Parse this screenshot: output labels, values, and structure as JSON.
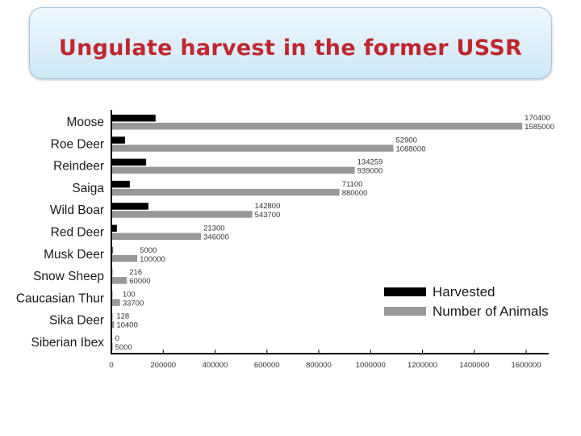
{
  "slide": {
    "title": "Ungulate harvest in the former USSR"
  },
  "chart_data": {
    "type": "bar",
    "orientation": "horizontal",
    "categories": [
      "Moose",
      "Roe Deer",
      "Reindeer",
      "Saiga",
      "Wild Boar",
      "Red Deer",
      "Musk Deer",
      "Snow Sheep",
      "Caucasian Thur",
      "Sika Deer",
      "Siberian Ibex"
    ],
    "series": [
      {
        "name": "Harvested",
        "color": "#000000",
        "values": [
          170400,
          52900,
          134259,
          71100,
          142800,
          21300,
          5000,
          216,
          100,
          128,
          0
        ],
        "labels": [
          "170400",
          "52900",
          "134259",
          "71100",
          "142800",
          "21300",
          "5000",
          "216",
          "100",
          "128",
          "0"
        ]
      },
      {
        "name": "Number of Animals",
        "color": "#999999",
        "values": [
          1585000,
          1088000,
          939000,
          880000,
          543700,
          346000,
          100000,
          60000,
          33700,
          10400,
          5000
        ],
        "labels": [
          "1585000",
          "1088000",
          "939000",
          "880000",
          "543700",
          "346000",
          "100000",
          "60000",
          "33700",
          "10400",
          "5000"
        ]
      }
    ],
    "xlim": [
      0,
      1600000
    ],
    "xticks": [
      0,
      200000,
      400000,
      600000,
      800000,
      1000000,
      1200000,
      1400000,
      1600000
    ],
    "xtick_labels": [
      "0",
      "200000",
      "400000",
      "600000",
      "800000",
      "1000000",
      "1200000",
      "1400000",
      "1600000"
    ],
    "legend_position": "right",
    "grid": false
  }
}
